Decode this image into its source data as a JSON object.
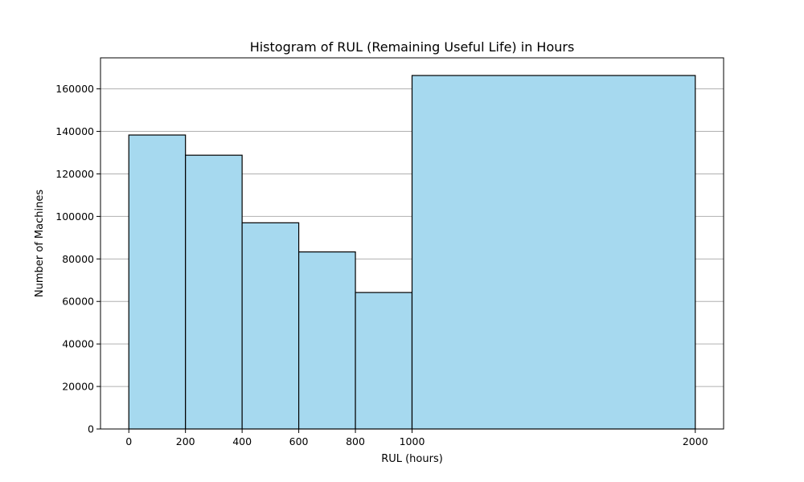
{
  "chart_data": {
    "type": "bar",
    "title": "Histogram of RUL (Remaining Useful Life) in Hours",
    "xlabel": "RUL (hours)",
    "ylabel": "Number of Machines",
    "bins": [
      {
        "start": 0,
        "end": 200,
        "value": 138300
      },
      {
        "start": 200,
        "end": 400,
        "value": 128800
      },
      {
        "start": 400,
        "end": 600,
        "value": 97000
      },
      {
        "start": 600,
        "end": 800,
        "value": 83300
      },
      {
        "start": 800,
        "end": 1000,
        "value": 64200
      },
      {
        "start": 1000,
        "end": 2000,
        "value": 166300
      }
    ],
    "xticks": [
      0,
      200,
      400,
      600,
      800,
      1000,
      2000
    ],
    "xtick_labels": [
      "0",
      "200",
      "400",
      "600",
      "800",
      "1000",
      "2000"
    ],
    "yticks": [
      0,
      20000,
      40000,
      60000,
      80000,
      100000,
      120000,
      140000,
      160000
    ],
    "ytick_labels": [
      "0",
      "20000",
      "40000",
      "60000",
      "80000",
      "100000",
      "120000",
      "140000",
      "160000"
    ],
    "xlim": [
      -100,
      2100
    ],
    "ylim": [
      0,
      174600
    ],
    "grid": "horizontal",
    "bar_color": "#a6d9ef",
    "edge_color": "#000000",
    "grid_color": "#b0b0b0"
  }
}
